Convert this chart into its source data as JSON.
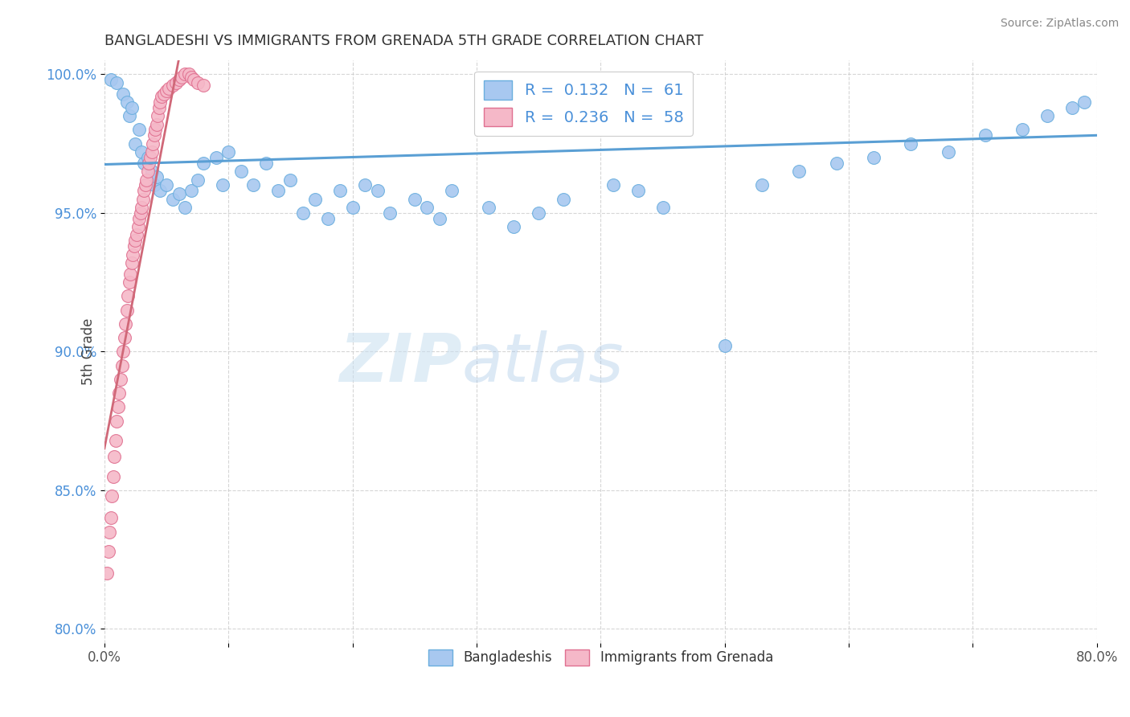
{
  "title": "BANGLADESHI VS IMMIGRANTS FROM GRENADA 5TH GRADE CORRELATION CHART",
  "source": "Source: ZipAtlas.com",
  "ylabel": "5th Grade",
  "R_blue": 0.132,
  "N_blue": 61,
  "R_pink": 0.236,
  "N_pink": 58,
  "xmin": 0.0,
  "xmax": 0.8,
  "ymin": 0.795,
  "ymax": 1.005,
  "yticks": [
    0.8,
    0.85,
    0.9,
    0.95,
    1.0
  ],
  "ytick_labels": [
    "80.0%",
    "85.0%",
    "90.0%",
    "95.0%",
    "100.0%"
  ],
  "xticks": [
    0.0,
    0.1,
    0.2,
    0.3,
    0.4,
    0.5,
    0.6,
    0.7,
    0.8
  ],
  "xtick_labels": [
    "0.0%",
    "",
    "",
    "",
    "",
    "",
    "",
    "",
    "80.0%"
  ],
  "color_blue": "#a8c8f0",
  "color_pink": "#f5b8c8",
  "edge_color_blue": "#6aaede",
  "edge_color_pink": "#e07090",
  "trend_color_blue": "#5a9fd4",
  "trend_color_pink": "#d06878",
  "watermark_zip": "ZIP",
  "watermark_atlas": "atlas",
  "blue_scatter_x": [
    0.005,
    0.01,
    0.015,
    0.018,
    0.02,
    0.022,
    0.025,
    0.028,
    0.03,
    0.032,
    0.035,
    0.038,
    0.04,
    0.042,
    0.045,
    0.05,
    0.055,
    0.06,
    0.065,
    0.07,
    0.075,
    0.08,
    0.09,
    0.095,
    0.1,
    0.11,
    0.12,
    0.13,
    0.14,
    0.15,
    0.16,
    0.17,
    0.18,
    0.19,
    0.2,
    0.21,
    0.22,
    0.23,
    0.25,
    0.26,
    0.27,
    0.28,
    0.31,
    0.33,
    0.35,
    0.37,
    0.41,
    0.43,
    0.45,
    0.53,
    0.56,
    0.59,
    0.62,
    0.65,
    0.68,
    0.71,
    0.74,
    0.76,
    0.78,
    0.79,
    0.5
  ],
  "blue_scatter_y": [
    0.998,
    0.997,
    0.993,
    0.99,
    0.985,
    0.988,
    0.975,
    0.98,
    0.972,
    0.968,
    0.97,
    0.965,
    0.96,
    0.963,
    0.958,
    0.96,
    0.955,
    0.957,
    0.952,
    0.958,
    0.962,
    0.968,
    0.97,
    0.96,
    0.972,
    0.965,
    0.96,
    0.968,
    0.958,
    0.962,
    0.95,
    0.955,
    0.948,
    0.958,
    0.952,
    0.96,
    0.958,
    0.95,
    0.955,
    0.952,
    0.948,
    0.958,
    0.952,
    0.945,
    0.95,
    0.955,
    0.96,
    0.958,
    0.952,
    0.96,
    0.965,
    0.968,
    0.97,
    0.975,
    0.972,
    0.978,
    0.98,
    0.985,
    0.988,
    0.99,
    0.902
  ],
  "pink_scatter_x": [
    0.002,
    0.003,
    0.004,
    0.005,
    0.006,
    0.007,
    0.008,
    0.009,
    0.01,
    0.011,
    0.012,
    0.013,
    0.014,
    0.015,
    0.016,
    0.017,
    0.018,
    0.019,
    0.02,
    0.021,
    0.022,
    0.023,
    0.024,
    0.025,
    0.026,
    0.027,
    0.028,
    0.029,
    0.03,
    0.031,
    0.032,
    0.033,
    0.034,
    0.035,
    0.036,
    0.037,
    0.038,
    0.039,
    0.04,
    0.041,
    0.042,
    0.043,
    0.044,
    0.045,
    0.046,
    0.048,
    0.05,
    0.052,
    0.055,
    0.058,
    0.06,
    0.062,
    0.065,
    0.068,
    0.07,
    0.072,
    0.075,
    0.08
  ],
  "pink_scatter_y": [
    0.82,
    0.828,
    0.835,
    0.84,
    0.848,
    0.855,
    0.862,
    0.868,
    0.875,
    0.88,
    0.885,
    0.89,
    0.895,
    0.9,
    0.905,
    0.91,
    0.915,
    0.92,
    0.925,
    0.928,
    0.932,
    0.935,
    0.938,
    0.94,
    0.942,
    0.945,
    0.948,
    0.95,
    0.952,
    0.955,
    0.958,
    0.96,
    0.962,
    0.965,
    0.968,
    0.97,
    0.972,
    0.975,
    0.978,
    0.98,
    0.982,
    0.985,
    0.988,
    0.99,
    0.992,
    0.993,
    0.994,
    0.995,
    0.996,
    0.997,
    0.998,
    0.999,
    1.0,
    1.0,
    0.999,
    0.998,
    0.997,
    0.996
  ]
}
